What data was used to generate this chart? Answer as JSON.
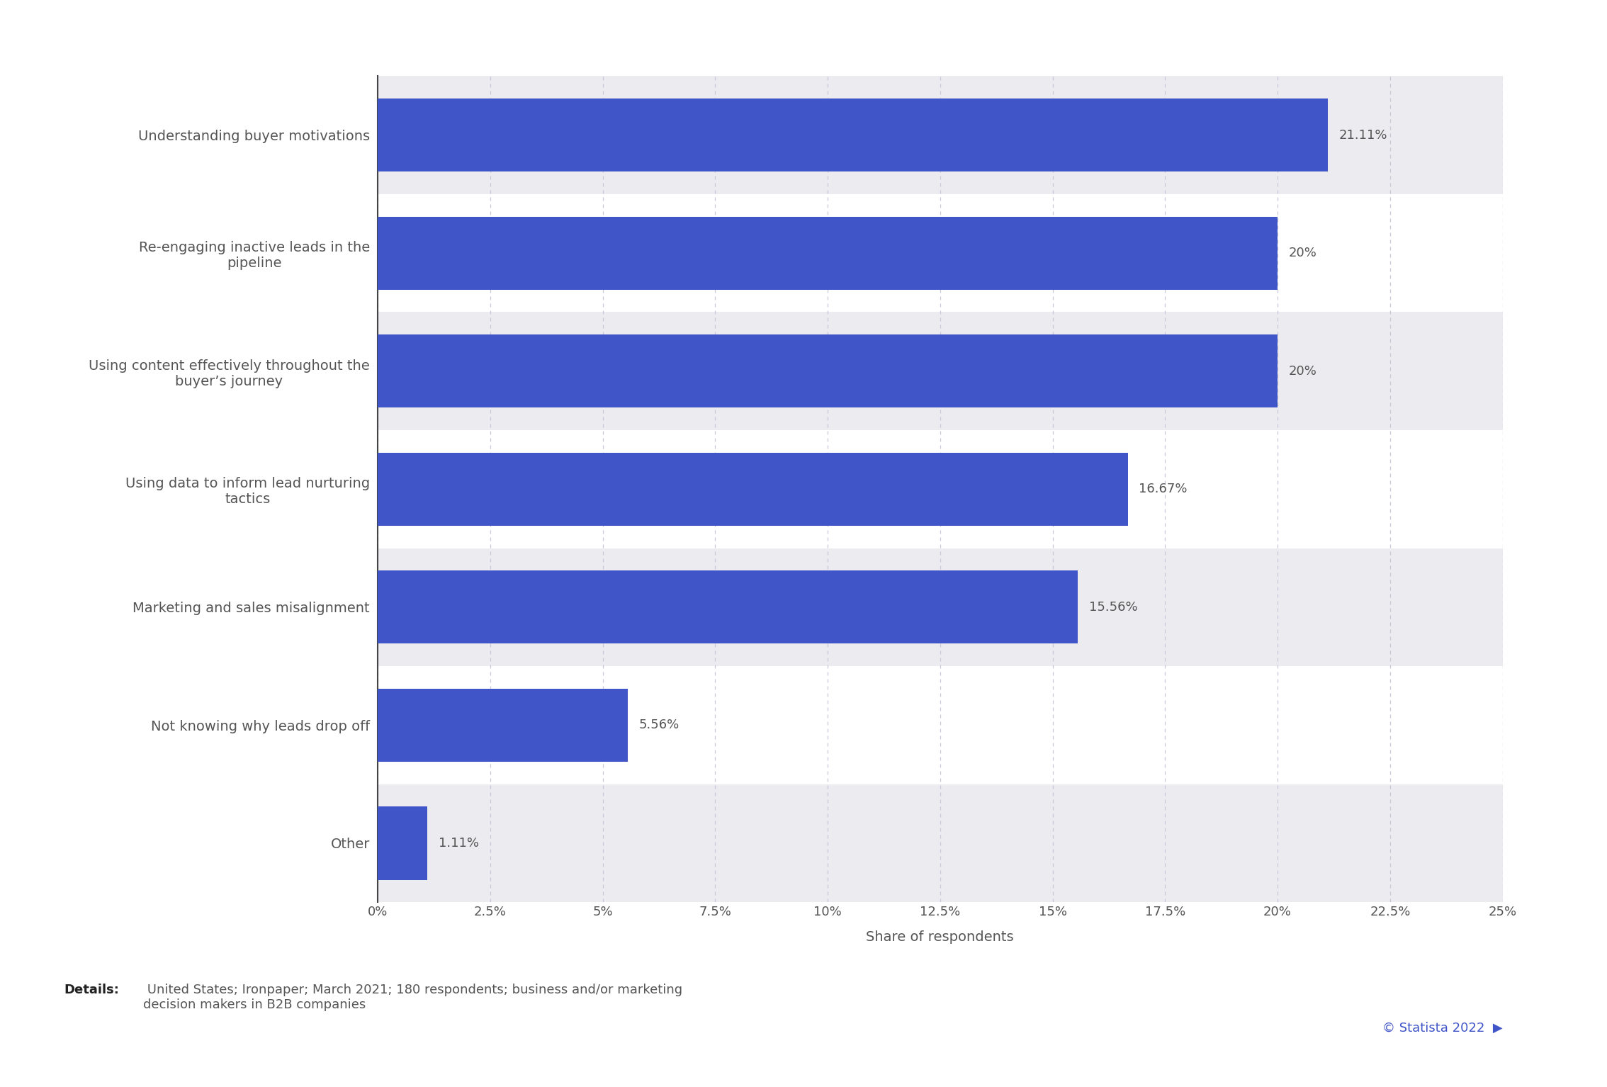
{
  "categories": [
    "Other",
    "Not knowing why leads drop off",
    "Marketing and sales misalignment",
    "Using data to inform lead nurturing\ntactics",
    "Using content effectively throughout the\nbuyer’s journey",
    "Re-engaging inactive leads in the\npipeline",
    "Understanding buyer motivations"
  ],
  "values": [
    1.11,
    5.56,
    15.56,
    16.67,
    20.0,
    20.0,
    21.11
  ],
  "bar_labels": [
    "1.11%",
    "5.56%",
    "15.56%",
    "16.67%",
    "20%",
    "20%",
    "21.11%"
  ],
  "bar_color": "#4055c8",
  "background_color": "#ffffff",
  "alt_row_color": "#ebebf0",
  "xlabel": "Share of respondents",
  "xlim": [
    0,
    25
  ],
  "xticks": [
    0,
    2.5,
    5.0,
    7.5,
    10.0,
    12.5,
    15.0,
    17.5,
    20.0,
    22.5,
    25.0
  ],
  "xtick_labels": [
    "0%",
    "2.5%",
    "5%",
    "7.5%",
    "10%",
    "12.5%",
    "15%",
    "17.5%",
    "20%",
    "22.5%",
    "25%"
  ],
  "grid_color": "#c8c8d8",
  "axis_color": "#444444",
  "label_color": "#555555",
  "value_label_color": "#555555",
  "details_bold": "Details:",
  "details_text": " United States; Ironpaper; March 2021; 180 respondents; business and/or marketing\ndecision makers in B2B companies",
  "statista_text": "© Statista 2022",
  "bar_height": 0.62,
  "tick_fontsize": 13,
  "label_fontsize": 14,
  "value_fontsize": 13,
  "details_fontsize": 13
}
